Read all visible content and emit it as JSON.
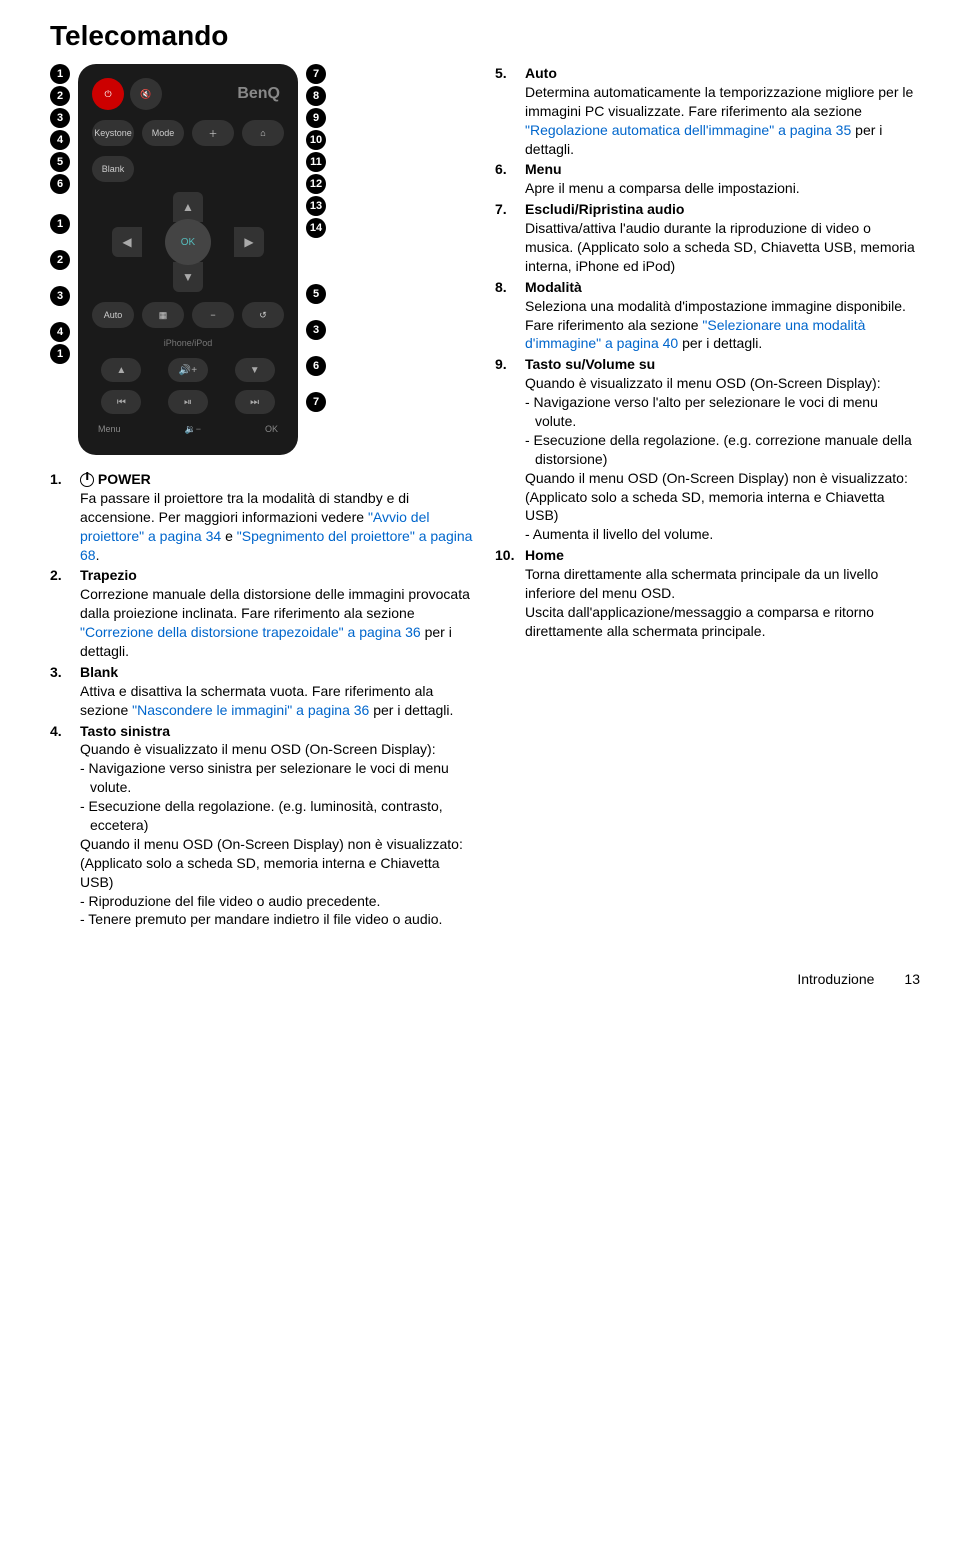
{
  "page": {
    "title": "Telecomando",
    "footer_label": "Introduzione",
    "footer_page": "13"
  },
  "remote": {
    "brand": "BenQ",
    "keystone": "Keystone",
    "mode": "Mode",
    "blank": "Blank",
    "auto": "Auto",
    "ok": "OK",
    "iphone": "iPhone/iPod",
    "menu": "Menu",
    "ok2": "OK"
  },
  "left_nums": [
    "1",
    "2",
    "3",
    "4",
    "5",
    "6",
    "1",
    "2",
    "3",
    "4",
    "1"
  ],
  "right_nums": [
    "7",
    "8",
    "9",
    "10",
    "11",
    "12",
    "13",
    "14",
    "5",
    "3",
    "6",
    "7"
  ],
  "left_items": [
    {
      "num": "1.",
      "title_prefix": "POWER",
      "body": "Fa passare il proiettore tra la modalità di standby e di accensione. Per maggiori informazioni vedere ",
      "link1": "\"Avvio del proiettore\" a pagina 34",
      "mid": " e ",
      "link2": "\"Spegnimento del proiettore\" a pagina 68",
      "end": "."
    },
    {
      "num": "2.",
      "title": "Trapezio",
      "body": "Correzione manuale della distorsione delle immagini provocata dalla proiezione inclinata. Fare riferimento ala sezione ",
      "link1": "\"Correzione della distorsione trapezoidale\" a pagina 36",
      "end": " per i dettagli."
    },
    {
      "num": "3.",
      "title": "Blank",
      "body": "Attiva e disattiva la schermata vuota. Fare riferimento ala sezione ",
      "link1": "\"Nascondere le immagini\" a pagina 36",
      "end": " per i dettagli."
    },
    {
      "num": "4.",
      "title": "Tasto sinistra",
      "body_lines": [
        "Quando è visualizzato il menu OSD (On-Screen Display):",
        "- Navigazione verso sinistra per selezionare le voci di menu volute.",
        "- Esecuzione della regolazione. (e.g. luminosità, contrasto, eccetera)",
        "Quando il menu OSD (On-Screen Display) non è visualizzato: (Applicato solo a scheda SD, memoria interna e Chiavetta USB)",
        "- Riproduzione del file video o audio precedente.",
        "- Tenere premuto per mandare indietro il file video o audio."
      ]
    }
  ],
  "right_items": [
    {
      "num": "5.",
      "title": "Auto",
      "body": "Determina automaticamente la temporizzazione migliore per le immagini PC visualizzate. Fare riferimento ala sezione ",
      "link1": "\"Regolazione automatica dell'immagine\" a pagina 35",
      "end": " per i dettagli."
    },
    {
      "num": "6.",
      "title": "Menu",
      "body": "Apre il menu a comparsa delle impostazioni."
    },
    {
      "num": "7.",
      "title": "Escludi/Ripristina audio",
      "body": "Disattiva/attiva l'audio durante la riproduzione di video o musica. (Applicato solo a scheda SD, Chiavetta USB, memoria interna, iPhone ed iPod)"
    },
    {
      "num": "8.",
      "title": "Modalità",
      "body": "Seleziona una modalità d'impostazione immagine disponibile. Fare riferimento ala sezione ",
      "link1": "\"Selezionare una modalità d'immagine\" a pagina 40",
      "end": " per i dettagli."
    },
    {
      "num": "9.",
      "title": "Tasto su/Volume su",
      "body_lines": [
        "Quando è visualizzato il menu OSD (On-Screen Display):",
        "- Navigazione verso l'alto per selezionare le voci di menu volute.",
        "- Esecuzione della regolazione. (e.g. correzione manuale della distorsione)",
        "Quando il menu OSD (On-Screen Display) non è visualizzato: (Applicato solo a scheda SD, memoria interna e Chiavetta USB)",
        "- Aumenta il livello del volume."
      ]
    },
    {
      "num": "10.",
      "title": "Home",
      "body_lines": [
        "Torna direttamente alla schermata principale da un livello inferiore del menu OSD.",
        "Uscita dall'applicazione/messaggio a comparsa e ritorno direttamente alla schermata principale."
      ]
    }
  ]
}
